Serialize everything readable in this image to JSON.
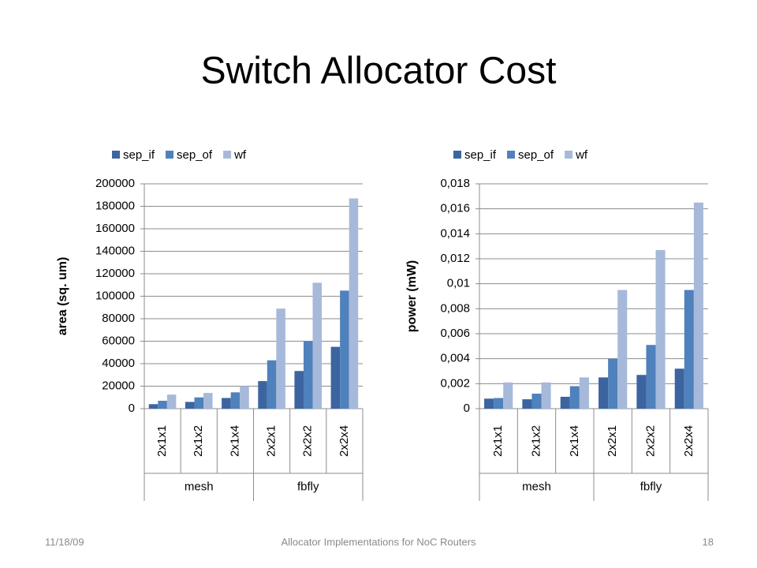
{
  "title": "Switch Allocator Cost",
  "footer": {
    "date": "11/18/09",
    "center": "Allocator Implementations for NoC Routers",
    "page": "18"
  },
  "chart_data": [
    {
      "type": "bar",
      "y_label": "area (sq. um)",
      "categories": [
        "2x1x1",
        "2x1x2",
        "2x1x4",
        "2x2x1",
        "2x2x2",
        "2x2x4"
      ],
      "category_groups": [
        "mesh",
        "mesh",
        "mesh",
        "fbfly",
        "fbfly",
        "fbfly"
      ],
      "series": [
        {
          "name": "sep_if",
          "color": "#3c64a0",
          "values": [
            4000,
            6000,
            9500,
            24500,
            33500,
            55000
          ]
        },
        {
          "name": "sep_of",
          "color": "#4f81bd",
          "values": [
            7000,
            10000,
            14500,
            43000,
            60000,
            105000
          ]
        },
        {
          "name": "wf",
          "color": "#a7b9da",
          "values": [
            12500,
            14000,
            20000,
            89000,
            112000,
            187000
          ]
        }
      ],
      "ylim": [
        0,
        200000
      ],
      "yticks": [
        0,
        20000,
        40000,
        60000,
        80000,
        100000,
        120000,
        140000,
        160000,
        180000,
        200000
      ],
      "grid": true,
      "legend": "top"
    },
    {
      "type": "bar",
      "y_label": "power (mW)",
      "categories": [
        "2x1x1",
        "2x1x2",
        "2x1x4",
        "2x2x1",
        "2x2x2",
        "2x2x4"
      ],
      "category_groups": [
        "mesh",
        "mesh",
        "mesh",
        "fbfly",
        "fbfly",
        "fbfly"
      ],
      "series": [
        {
          "name": "sep_if",
          "color": "#3c64a0",
          "values": [
            0.0008,
            0.00075,
            0.00095,
            0.0025,
            0.0027,
            0.0032
          ]
        },
        {
          "name": "sep_of",
          "color": "#4f81bd",
          "values": [
            0.00085,
            0.0012,
            0.0018,
            0.004,
            0.0051,
            0.0095
          ]
        },
        {
          "name": "wf",
          "color": "#a7b9da",
          "values": [
            0.0021,
            0.0021,
            0.0025,
            0.0095,
            0.0127,
            0.0165
          ]
        }
      ],
      "ylim": [
        0,
        0.018
      ],
      "yticks": [
        0,
        {
          "value": 0.002,
          "label": "0,002"
        },
        {
          "value": 0.004,
          "label": "0,004"
        },
        {
          "value": 0.006,
          "label": "0,006"
        },
        {
          "value": 0.008,
          "label": "0,008"
        },
        {
          "value": 0.01,
          "label": "0,01"
        },
        {
          "value": 0.012,
          "label": "0,012"
        },
        {
          "value": 0.014,
          "label": "0,014"
        },
        {
          "value": 0.016,
          "label": "0,016"
        },
        {
          "value": 0.018,
          "label": "0,018"
        }
      ],
      "grid": true,
      "legend": "top"
    }
  ]
}
